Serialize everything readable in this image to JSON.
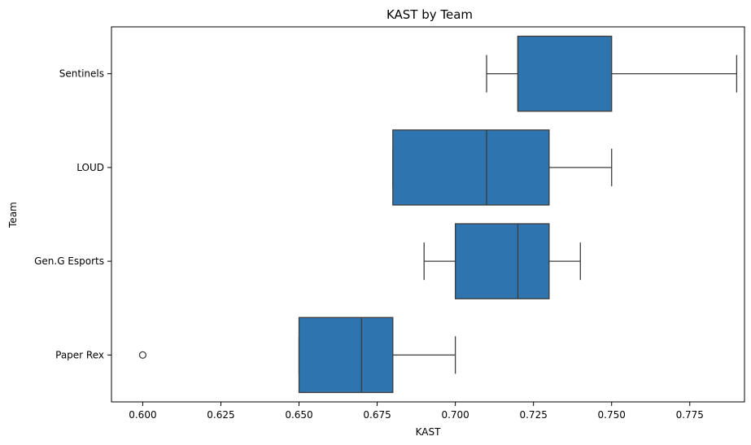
{
  "chart_data": {
    "type": "box",
    "title": "KAST by Team",
    "xlabel": "KAST",
    "ylabel": "Team",
    "xlim": [
      0.59,
      0.7925
    ],
    "xticks": [
      0.6,
      0.625,
      0.65,
      0.675,
      0.7,
      0.725,
      0.75,
      0.775
    ],
    "xtick_labels": [
      "0.600",
      "0.625",
      "0.650",
      "0.675",
      "0.700",
      "0.725",
      "0.750",
      "0.775"
    ],
    "grid": false,
    "box_color": "#2e75b0",
    "line_color": "#3d3d3d",
    "categories": [
      "Sentinels",
      "LOUD",
      "Gen.G Esports",
      "Paper Rex"
    ],
    "boxes": [
      {
        "team": "Sentinels",
        "whisker_low": 0.71,
        "q1": 0.72,
        "median": 0.72,
        "q3": 0.75,
        "whisker_high": 0.79,
        "outliers": []
      },
      {
        "team": "LOUD",
        "whisker_low": 0.68,
        "q1": 0.68,
        "median": 0.71,
        "q3": 0.73,
        "whisker_high": 0.75,
        "outliers": []
      },
      {
        "team": "Gen.G Esports",
        "whisker_low": 0.69,
        "q1": 0.7,
        "median": 0.72,
        "q3": 0.73,
        "whisker_high": 0.74,
        "outliers": []
      },
      {
        "team": "Paper Rex",
        "whisker_low": 0.65,
        "q1": 0.65,
        "median": 0.67,
        "q3": 0.68,
        "whisker_high": 0.7,
        "outliers": [
          0.6
        ]
      }
    ]
  }
}
